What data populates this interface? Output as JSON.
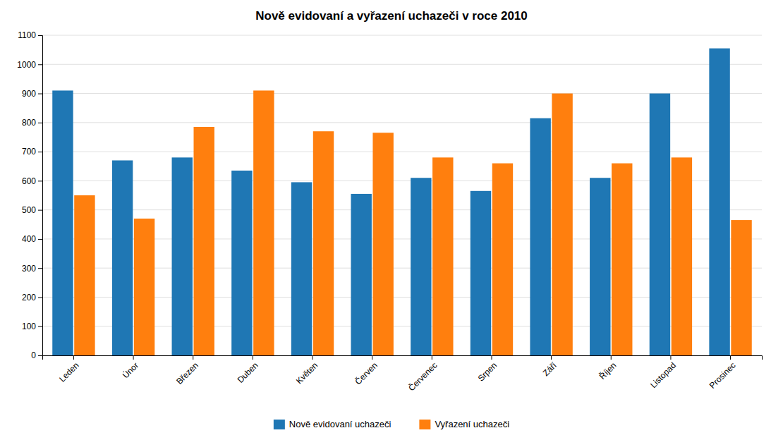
{
  "chart_data": {
    "type": "bar",
    "title": "Nově evidovaní a vyřazení uchazeči v roce 2010",
    "categories": [
      "Leden",
      "Únor",
      "Březen",
      "Duben",
      "Květen",
      "Červen",
      "Červenec",
      "Srpen",
      "Září",
      "Říjen",
      "Listopad",
      "Prosinec"
    ],
    "series": [
      {
        "name": "Nově evidovaní uchazeči",
        "values": [
          910,
          670,
          680,
          635,
          595,
          555,
          610,
          565,
          815,
          610,
          900,
          1055
        ]
      },
      {
        "name": "Vyřazení uchazeči",
        "values": [
          550,
          470,
          785,
          910,
          770,
          765,
          680,
          660,
          900,
          660,
          680,
          465
        ]
      }
    ],
    "ylim": [
      0,
      1100
    ],
    "yticks": [
      0,
      100,
      200,
      300,
      400,
      500,
      600,
      700,
      800,
      900,
      1000,
      1100
    ],
    "grid": true,
    "legend": "bottom"
  }
}
